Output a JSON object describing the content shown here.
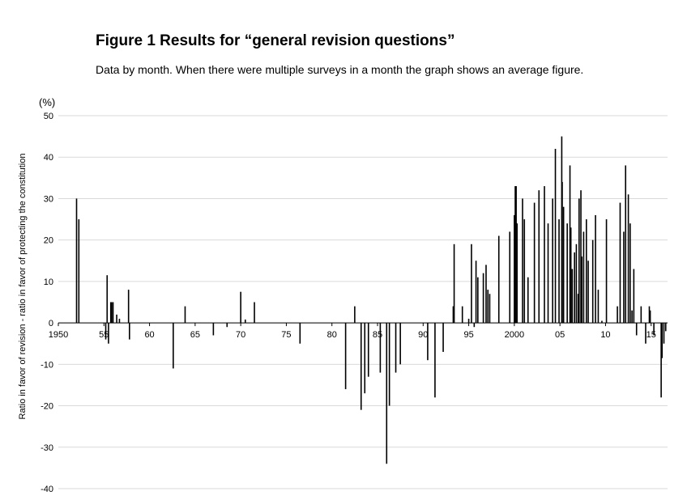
{
  "figure": {
    "title": "Figure 1 Results for “general revision questions”",
    "subtitle": "Data by month. When there were multiple surveys in a month the graph shows an average figure."
  },
  "chart_data": {
    "type": "bar",
    "title": "Figure 1 Results for “general revision questions”",
    "subtitle": "Data by month. When there were multiple surveys in a month the graph shows an average figure.",
    "ylabel": "Ratio in favor of revision - ratio in favor of protecting the constitution",
    "yunit": "(%)",
    "ylim": [
      -40,
      50
    ],
    "yticks": [
      50,
      40,
      30,
      20,
      10,
      0,
      -10,
      -20,
      -30,
      -40
    ],
    "xlim": [
      1950,
      2016.8
    ],
    "xticks": [
      {
        "value": 1950,
        "label": "1950"
      },
      {
        "value": 1955,
        "label": "55"
      },
      {
        "value": 1960,
        "label": "60"
      },
      {
        "value": 1965,
        "label": "65"
      },
      {
        "value": 1970,
        "label": "70"
      },
      {
        "value": 1975,
        "label": "75"
      },
      {
        "value": 1980,
        "label": "80"
      },
      {
        "value": 1985,
        "label": "85"
      },
      {
        "value": 1990,
        "label": "90"
      },
      {
        "value": 1995,
        "label": "95"
      },
      {
        "value": 2000,
        "label": "2000"
      },
      {
        "value": 2005,
        "label": "05"
      },
      {
        "value": 2010,
        "label": "10"
      },
      {
        "value": 2015,
        "label": "15"
      }
    ],
    "grid": true,
    "color": "#000000",
    "x": [
      1952.0,
      1952.25,
      1955.2,
      1955.35,
      1955.5,
      1955.75,
      1955.85,
      1956.0,
      1956.4,
      1956.7,
      1957.7,
      1957.8,
      1962.6,
      1963.9,
      1967.0,
      1968.5,
      1970.0,
      1970.5,
      1971.5,
      1976.5,
      1981.5,
      1982.5,
      1983.2,
      1983.6,
      1984.0,
      1985.3,
      1986.0,
      1986.3,
      1987.0,
      1987.5,
      1990.5,
      1991.3,
      1992.2,
      1993.3,
      1993.4,
      1994.3,
      1995.0,
      1995.3,
      1995.6,
      1995.8,
      1996.0,
      1996.6,
      1996.9,
      1997.1,
      1997.3,
      1998.3,
      1999.5,
      2000.0,
      2000.1,
      2000.2,
      2000.3,
      2000.9,
      2001.1,
      2001.5,
      2002.2,
      2002.7,
      2003.3,
      2003.7,
      2004.2,
      2004.5,
      2004.9,
      2005.2,
      2005.25,
      2005.4,
      2005.8,
      2006.1,
      2006.2,
      2006.35,
      2006.6,
      2006.8,
      2007.0,
      2007.1,
      2007.3,
      2007.4,
      2007.6,
      2007.9,
      2008.1,
      2008.6,
      2008.9,
      2009.2,
      2009.6,
      2010.1,
      2011.3,
      2011.6,
      2012.0,
      2012.2,
      2012.5,
      2012.7,
      2012.9,
      2013.1,
      2013.4,
      2013.9,
      2014.4,
      2014.8,
      2014.9,
      2015.3,
      2016.1,
      2016.2,
      2016.4,
      2016.6
    ],
    "values": [
      30,
      25,
      -4,
      11.5,
      -5,
      5,
      5,
      5,
      2,
      1,
      8,
      -4,
      -11,
      4,
      -3,
      -1,
      7.5,
      0.8,
      5,
      -5,
      -16,
      4,
      -21,
      -17,
      -13,
      -12,
      -34,
      -20,
      -12,
      -10,
      -9,
      -18,
      -7,
      4,
      19,
      4,
      1,
      19,
      -1,
      15,
      11,
      12,
      14,
      8,
      7,
      21,
      22,
      26,
      33,
      33,
      24,
      30,
      25,
      11,
      29,
      32,
      33,
      24,
      30,
      42,
      25,
      45,
      34,
      28,
      24,
      38,
      23,
      13,
      17,
      19,
      7,
      30,
      32,
      16,
      22,
      25,
      15,
      20,
      26,
      8,
      0.5,
      25,
      4,
      29,
      22,
      38,
      31,
      24,
      3,
      13,
      -3,
      4,
      -5,
      4,
      3,
      -3,
      -18,
      -8.5,
      -5,
      -2
    ]
  }
}
